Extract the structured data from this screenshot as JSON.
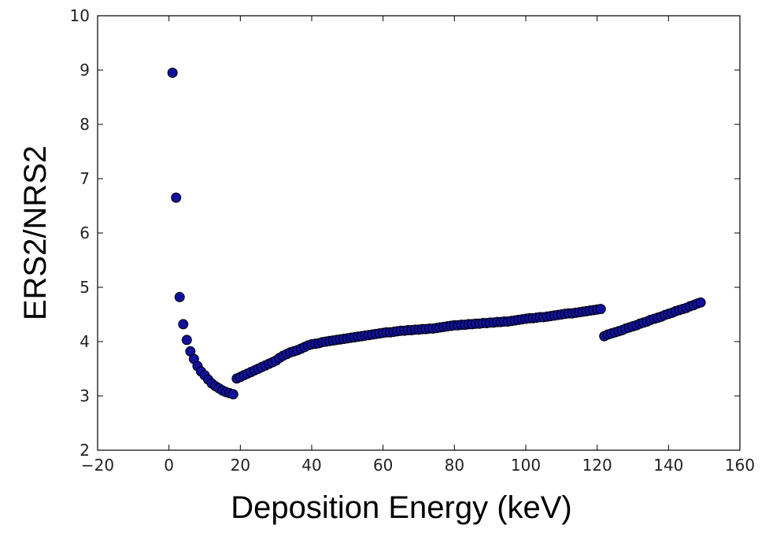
{
  "chart_data": {
    "type": "scatter",
    "xlabel": "Deposition Energy (keV)",
    "ylabel": "ERS2/NRS2",
    "color": "#10109c",
    "xlim": [
      -20,
      160
    ],
    "ylim": [
      2,
      10
    ],
    "xticks": [
      {
        "value": -20,
        "label": "−20"
      },
      0,
      20,
      40,
      60,
      80,
      100,
      120,
      140,
      160
    ],
    "yticks": [
      2,
      3,
      4,
      5,
      6,
      7,
      8,
      9,
      10
    ],
    "x": [
      1,
      2,
      3,
      4,
      5,
      6,
      7,
      8,
      9,
      10,
      11,
      12,
      13,
      14,
      15,
      16,
      17,
      18,
      19,
      20,
      21,
      22,
      23,
      24,
      25,
      26,
      27,
      28,
      29,
      30,
      31,
      32,
      33,
      34,
      35,
      36,
      37,
      38,
      39,
      40,
      41,
      42,
      43,
      44,
      45,
      46,
      47,
      48,
      49,
      50,
      51,
      52,
      53,
      54,
      55,
      56,
      57,
      58,
      59,
      60,
      61,
      62,
      63,
      64,
      65,
      66,
      67,
      68,
      69,
      70,
      71,
      72,
      73,
      74,
      75,
      76,
      77,
      78,
      79,
      80,
      81,
      82,
      83,
      84,
      85,
      86,
      87,
      88,
      89,
      90,
      91,
      92,
      93,
      94,
      95,
      96,
      97,
      98,
      99,
      100,
      101,
      102,
      103,
      104,
      105,
      106,
      107,
      108,
      109,
      110,
      111,
      112,
      113,
      114,
      115,
      116,
      117,
      118,
      119,
      120,
      121,
      122,
      123,
      124,
      125,
      126,
      127,
      128,
      129,
      130,
      131,
      132,
      133,
      134,
      135,
      136,
      137,
      138,
      139,
      140,
      141,
      142,
      143,
      144,
      145,
      146,
      147,
      148,
      149
    ],
    "values": [
      8.95,
      6.65,
      4.82,
      4.32,
      4.03,
      3.82,
      3.68,
      3.55,
      3.45,
      3.38,
      3.3,
      3.23,
      3.18,
      3.14,
      3.1,
      3.07,
      3.05,
      3.03,
      3.32,
      3.35,
      3.38,
      3.41,
      3.44,
      3.47,
      3.5,
      3.53,
      3.56,
      3.59,
      3.62,
      3.65,
      3.7,
      3.74,
      3.77,
      3.8,
      3.82,
      3.84,
      3.87,
      3.9,
      3.93,
      3.95,
      3.96,
      3.97,
      3.99,
      4.0,
      4.01,
      4.02,
      4.03,
      4.04,
      4.05,
      4.06,
      4.07,
      4.08,
      4.09,
      4.1,
      4.11,
      4.12,
      4.13,
      4.14,
      4.15,
      4.16,
      4.17,
      4.17,
      4.18,
      4.19,
      4.2,
      4.2,
      4.21,
      4.21,
      4.22,
      4.22,
      4.23,
      4.23,
      4.24,
      4.24,
      4.25,
      4.26,
      4.27,
      4.28,
      4.29,
      4.3,
      4.3,
      4.31,
      4.31,
      4.32,
      4.32,
      4.33,
      4.33,
      4.34,
      4.34,
      4.35,
      4.35,
      4.36,
      4.36,
      4.37,
      4.37,
      4.38,
      4.39,
      4.4,
      4.41,
      4.42,
      4.43,
      4.43,
      4.44,
      4.45,
      4.45,
      4.46,
      4.47,
      4.48,
      4.49,
      4.5,
      4.51,
      4.52,
      4.52,
      4.53,
      4.54,
      4.55,
      4.56,
      4.57,
      4.58,
      4.59,
      4.6,
      4.1,
      4.13,
      4.15,
      4.17,
      4.19,
      4.21,
      4.24,
      4.26,
      4.28,
      4.3,
      4.33,
      4.35,
      4.37,
      4.4,
      4.42,
      4.44,
      4.46,
      4.49,
      4.51,
      4.53,
      4.56,
      4.58,
      4.6,
      4.62,
      4.65,
      4.67,
      4.7,
      4.72
    ]
  }
}
